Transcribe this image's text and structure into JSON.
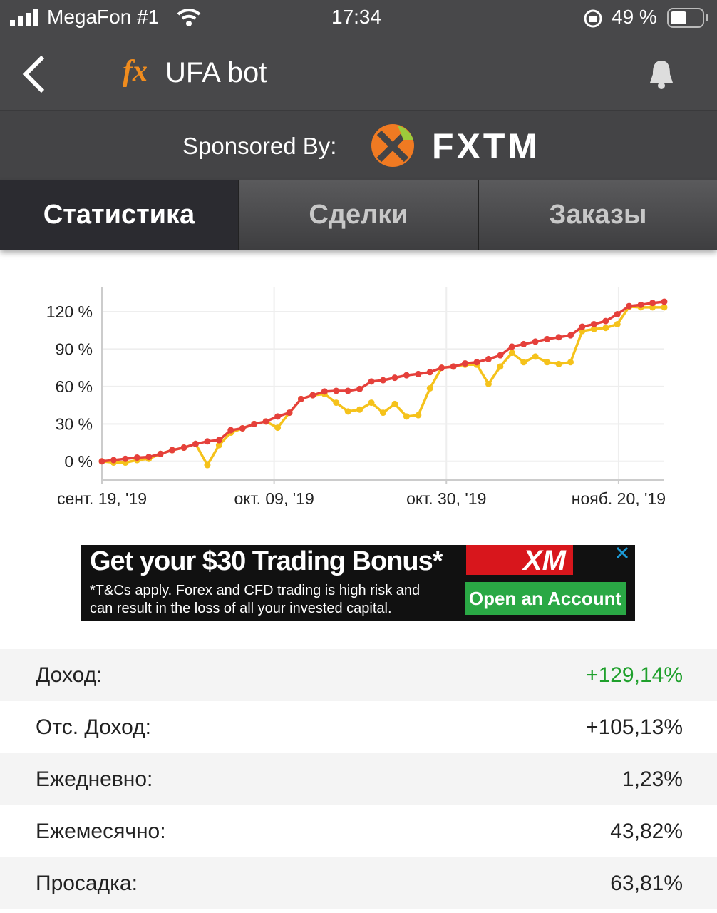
{
  "status_bar": {
    "carrier": "MegaFon #1",
    "time": "17:34",
    "battery": "49 %"
  },
  "header": {
    "logo": "fx",
    "title": "UFA bot"
  },
  "sponsor": {
    "label": "Sponsored By:",
    "brand": "FXTM"
  },
  "tabs": [
    "Статистика",
    "Сделки",
    "Заказы"
  ],
  "chart_data": {
    "type": "line",
    "x": [
      0,
      1,
      2,
      3,
      4,
      5,
      6,
      7,
      8,
      9,
      10,
      11,
      12,
      13,
      14,
      15,
      16,
      17,
      18,
      19,
      20,
      21,
      22,
      23,
      24,
      25,
      26,
      27,
      28,
      29,
      30,
      31,
      32,
      33,
      34,
      35,
      36,
      37,
      38,
      39,
      40,
      41,
      42,
      43,
      44,
      45,
      46,
      47,
      48
    ],
    "xlim": [
      0,
      48
    ],
    "xticks": [
      {
        "value": 0,
        "label": "сент. 19, '19"
      },
      {
        "value": 14.7,
        "label": "окт. 09, '19"
      },
      {
        "value": 29.4,
        "label": "окт. 30, '19"
      },
      {
        "value": 44.1,
        "label": "нояб. 20, '19"
      }
    ],
    "ylim": [
      -15,
      140
    ],
    "yticks": [
      {
        "value": 0,
        "label": "0 %"
      },
      {
        "value": 30,
        "label": "30 %"
      },
      {
        "value": 60,
        "label": "60 %"
      },
      {
        "value": 90,
        "label": "90 %"
      },
      {
        "value": 120,
        "label": "120 %"
      }
    ],
    "grid": true,
    "series": [
      {
        "color": "#f5c21b",
        "values": [
          0,
          -1,
          -1,
          1,
          2,
          6,
          9,
          11,
          14,
          -3,
          13,
          23,
          26.5,
          30,
          32,
          27,
          39,
          50,
          53,
          54,
          47,
          40,
          41.5,
          47,
          39,
          46,
          36,
          37,
          58.5,
          75,
          76,
          77.5,
          77.5,
          62,
          76,
          87,
          79.5,
          84,
          79.5,
          78,
          79.5,
          104.5,
          106,
          107,
          110,
          124,
          123.5,
          123.5,
          123.5
        ]
      },
      {
        "color": "#e5403b",
        "values": [
          0,
          1,
          2,
          3,
          3.5,
          6,
          9,
          11,
          14,
          16,
          17,
          25,
          26.5,
          30,
          32,
          36,
          39,
          50,
          53,
          56,
          56.5,
          56.5,
          58,
          64,
          65,
          67,
          69,
          70,
          71.5,
          75,
          76,
          78.5,
          79.5,
          82,
          85,
          92,
          94,
          96,
          98,
          99.5,
          101,
          108,
          110,
          112.5,
          118,
          124.5,
          125.5,
          127,
          128
        ]
      }
    ]
  },
  "ad": {
    "headline": "Get your $30 Trading Bonus*",
    "disclaimer": "*T&Cs apply. Forex and CFD trading is high risk and can result in the loss of all your invested capital.",
    "brand": "XM",
    "button": "Open an Account"
  },
  "stats": [
    [
      "Доход:",
      "+129,14%"
    ],
    [
      "Отс. Доход:",
      "+105,13%"
    ],
    [
      "Ежедневно:",
      "1,23%"
    ],
    [
      "Ежемесячно:",
      "43,82%"
    ],
    [
      "Просадка:",
      "63,81%"
    ]
  ]
}
